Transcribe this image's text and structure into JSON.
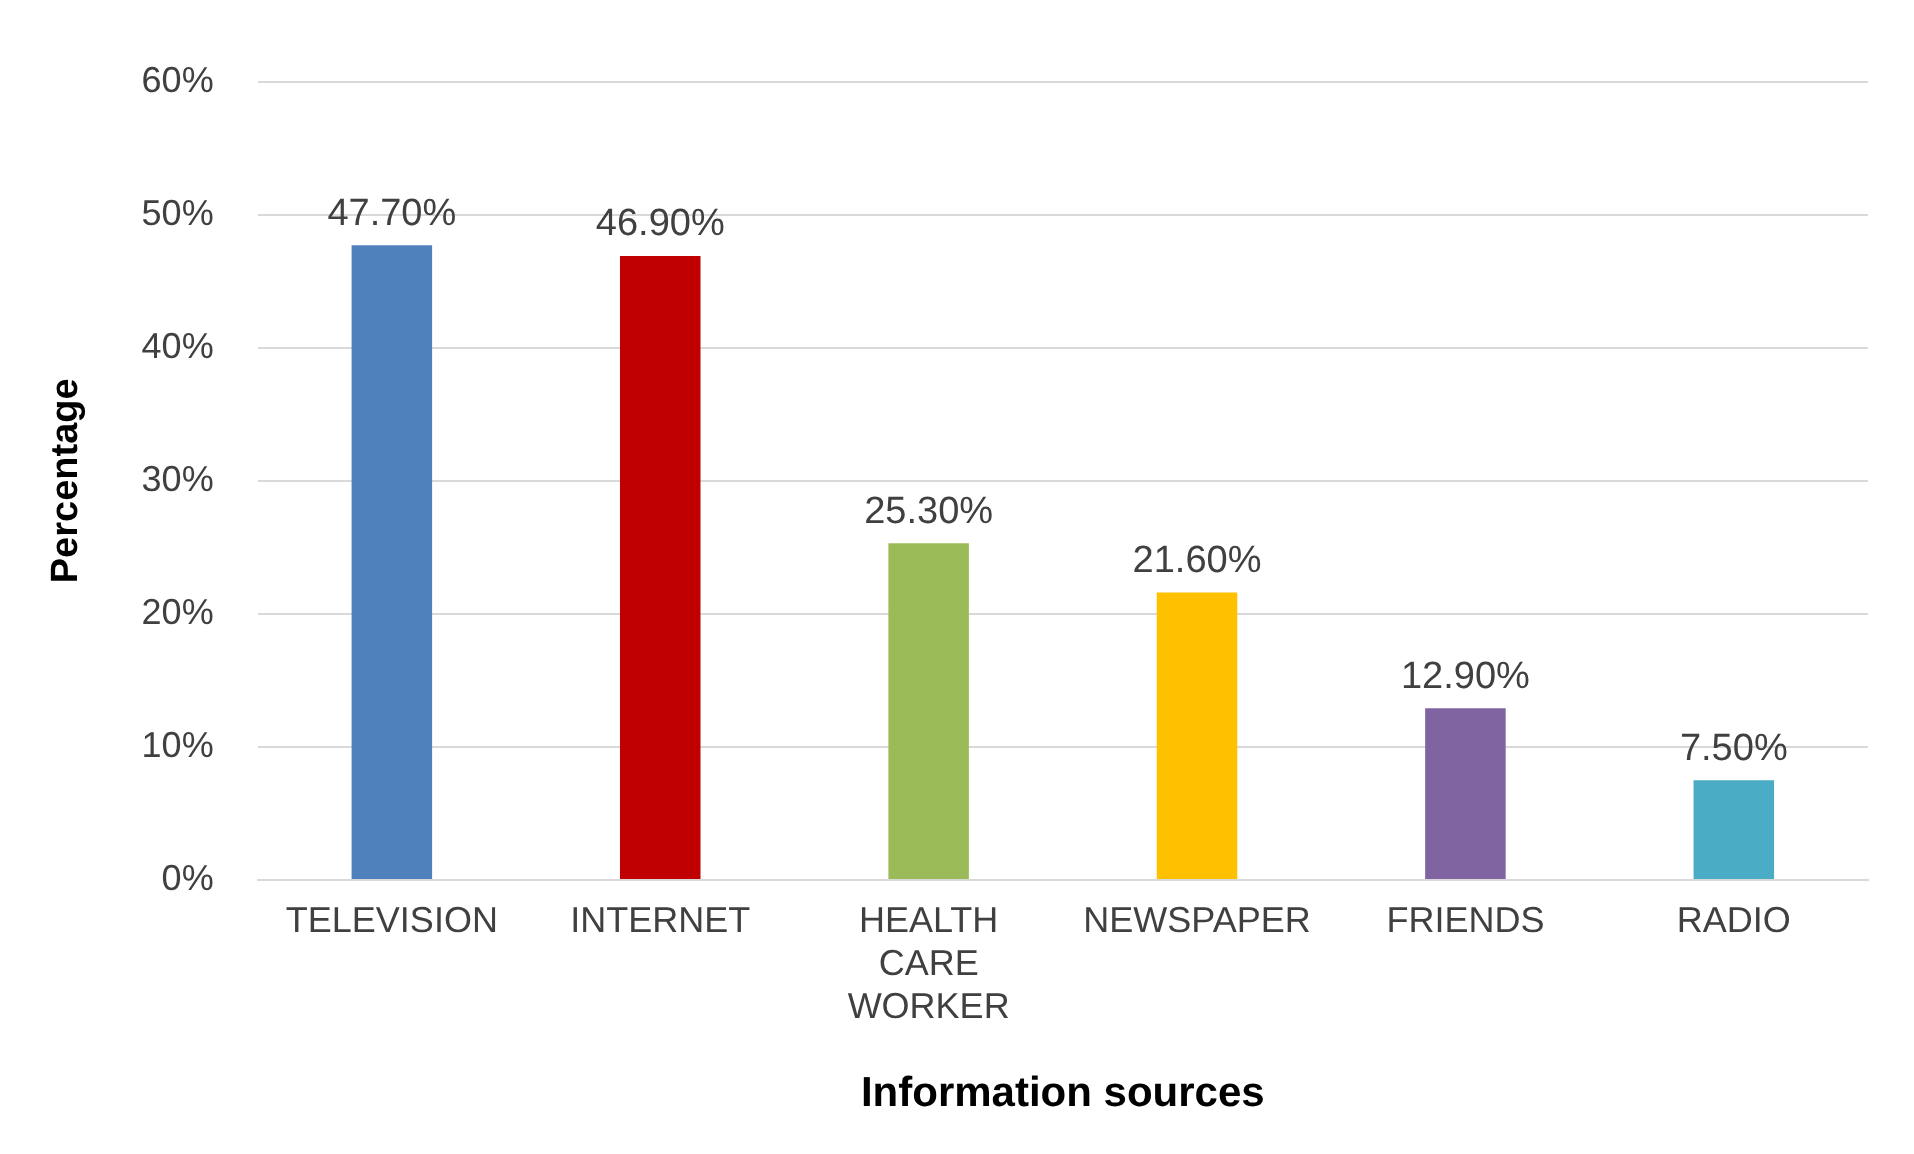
{
  "chart_data": {
    "type": "bar",
    "xlabel": "Information sources",
    "ylabel": "Percentage",
    "categories": [
      "TELEVISION",
      "INTERNET",
      "HEALTH CARE WORKER",
      "NEWSPAPER",
      "FRIENDS",
      "RADIO"
    ],
    "values": [
      47.7,
      46.9,
      25.3,
      21.6,
      12.9,
      7.5
    ],
    "colors": [
      "#4f81bd",
      "#c00000",
      "#9bbb59",
      "#ffc000",
      "#8064a2",
      "#4bacc6"
    ],
    "value_labels": [
      "47.70%",
      "46.90%",
      "25.30%",
      "21.60%",
      "12.90%",
      "7.50%"
    ],
    "ylim": [
      0,
      60
    ],
    "yticks": [
      {
        "value": 0,
        "label": "0%"
      },
      {
        "value": 10,
        "label": "10%"
      },
      {
        "value": 20,
        "label": "20%"
      },
      {
        "value": 30,
        "label": "30%"
      },
      {
        "value": 40,
        "label": "40%"
      },
      {
        "value": 50,
        "label": "50%"
      },
      {
        "value": 60,
        "label": "60%"
      }
    ],
    "grid": "y",
    "legend": false
  }
}
